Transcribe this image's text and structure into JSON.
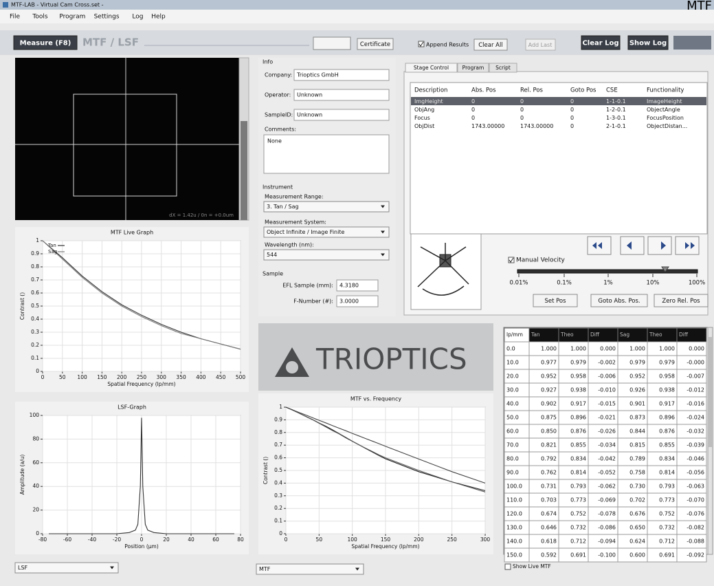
{
  "window": {
    "title": "MTF-LAB - Virtual Cam Cross.set -",
    "corner": "MTF"
  },
  "menu": [
    "File",
    "Tools",
    "Program",
    "Settings",
    "Log",
    "Help"
  ],
  "toolbar": {
    "measure": "Measure (F8)",
    "mode": "MTF / LSF",
    "certificate": "Certificate",
    "append": "Append Results",
    "clear_all": "Clear All",
    "add_last": "Add Last",
    "clear_log": "Clear Log",
    "show_log": "Show Log"
  },
  "camera": {
    "status": "dX =   1.42u / 0n =   +0.0um"
  },
  "info": {
    "heading": "Info",
    "company_label": "Company:",
    "company": "Trioptics GmbH",
    "operator_label": "Operator:",
    "operator": "Unknown",
    "sample_id_label": "SampleID:",
    "sample_id": "Unknown",
    "comments_label": "Comments:",
    "comments": "None"
  },
  "instrument": {
    "heading": "Instrument",
    "range_label": "Measurement Range:",
    "range": "3. Tan / Sag",
    "system_label": "Measurement System:",
    "system": "Object Infinite / Image Finite",
    "wavelength_label": "Wavelength (nm):",
    "wavelength": "544"
  },
  "sample": {
    "heading": "Sample",
    "efl_label": "EFL Sample (mm):",
    "efl": "4.3180",
    "fnum_label": "F-Number (#):",
    "fnum": "3.0000"
  },
  "stage": {
    "tabs": [
      "Stage Control",
      "Program",
      "Script"
    ],
    "columns": [
      "Description",
      "Abs. Pos",
      "Rel. Pos",
      "Goto Pos",
      "CSE",
      "Functionality"
    ],
    "rows": [
      [
        "ImgHeight",
        "0",
        "0",
        "0",
        "1-1-0.1",
        "ImageHeight"
      ],
      [
        "ObjAng",
        "0",
        "0",
        "0",
        "1-2-0.1",
        "ObjectAngle"
      ],
      [
        "Focus",
        "0",
        "0",
        "0",
        "1-3-0.1",
        "FocusPosition"
      ],
      [
        "ObjDist",
        "1743.00000",
        "1743.00000",
        "0",
        "2-1-0.1",
        "ObjectDistan..."
      ]
    ],
    "manual_velocity": "Manual Velocity",
    "velocity_ticks": [
      "0.01%",
      "0.1%",
      "1%",
      "10%",
      "100%"
    ],
    "buttons": [
      "Set Pos",
      "Goto Abs. Pos.",
      "Zero Rel. Pos"
    ]
  },
  "logo": "TRIOPTICS",
  "charts": {
    "live": {
      "type": "line",
      "title": "MTF Live Graph",
      "x_label": "Spatial Frequency (lp/mm)",
      "y_label": "Contrast ()",
      "x": [
        0,
        50,
        100,
        150,
        200,
        250,
        300,
        350,
        400,
        450,
        500
      ],
      "series": [
        {
          "name": "Tan",
          "color": "#333333",
          "values": [
            1,
            0.87,
            0.73,
            0.61,
            0.51,
            0.43,
            0.36,
            0.3,
            0.25,
            0.21,
            0.17
          ]
        },
        {
          "name": "Sag",
          "color": "#777777",
          "values": [
            1,
            0.86,
            0.72,
            0.6,
            0.5,
            0.42,
            0.35,
            0.29,
            0.25,
            0.21,
            0.17
          ]
        }
      ],
      "xlim": [
        0,
        500
      ],
      "xticks": [
        0,
        50,
        100,
        150,
        200,
        250,
        300,
        350,
        400,
        450,
        500
      ],
      "ylim": [
        0,
        1
      ],
      "yticks": [
        0,
        0.1,
        0.2,
        0.3,
        0.4,
        0.5,
        0.6,
        0.7,
        0.8,
        0.9,
        1
      ],
      "grid": true
    },
    "lsf": {
      "type": "line",
      "title": "LSF-Graph",
      "x_label": "Position (µm)",
      "y_label": "Amplitude (a/u)",
      "x": [
        -75,
        -20,
        -10,
        -5,
        -3,
        -1,
        0,
        1,
        3,
        5,
        10,
        20,
        75
      ],
      "series": [
        {
          "color": "#333333",
          "values": [
            0,
            0,
            1,
            3,
            8,
            40,
            98,
            40,
            8,
            3,
            1,
            0,
            0
          ]
        }
      ],
      "xlim": [
        -80,
        80
      ],
      "xticks": [
        -80,
        -60,
        -40,
        -20,
        0,
        20,
        40,
        60,
        80
      ],
      "ylim": [
        0,
        100
      ],
      "yticks": [
        0,
        20,
        40,
        60,
        80,
        100
      ],
      "grid": true
    },
    "mtf": {
      "type": "line",
      "title": "MTF vs. Frequency",
      "x_label": "Spatial Frequency (lp/mm)",
      "y_label": "Contrast ()",
      "x": [
        0,
        10,
        20,
        30,
        40,
        50,
        60,
        70,
        80,
        90,
        100,
        110,
        120,
        130,
        140,
        150,
        200,
        250,
        300
      ],
      "series": [
        {
          "color": "#222222",
          "values": [
            1,
            0.977,
            0.952,
            0.927,
            0.902,
            0.875,
            0.85,
            0.821,
            0.792,
            0.762,
            0.731,
            0.703,
            0.674,
            0.646,
            0.618,
            0.592,
            0.49,
            0.41,
            0.34
          ]
        },
        {
          "color": "#555555",
          "values": [
            1,
            0.979,
            0.952,
            0.926,
            0.901,
            0.873,
            0.844,
            0.815,
            0.789,
            0.758,
            0.73,
            0.702,
            0.676,
            0.65,
            0.624,
            0.6,
            0.5,
            0.41,
            0.33
          ]
        },
        {
          "color": "#444444",
          "values": [
            1,
            0.979,
            0.958,
            0.938,
            0.917,
            0.896,
            0.876,
            0.855,
            0.834,
            0.814,
            0.793,
            0.773,
            0.752,
            0.732,
            0.712,
            0.691,
            0.59,
            0.49,
            0.4
          ]
        }
      ],
      "xlim": [
        0,
        300
      ],
      "xticks": [
        0,
        50,
        100,
        150,
        200,
        250,
        300
      ],
      "ylim": [
        0,
        1
      ],
      "yticks": [
        0,
        0.1,
        0.2,
        0.3,
        0.4,
        0.5,
        0.6,
        0.7,
        0.8,
        0.9,
        1
      ],
      "grid": true
    }
  },
  "table": {
    "columns": [
      "lp/mm",
      "Tan",
      "Theo",
      "Diff",
      "Sag",
      "Theo",
      "Diff"
    ],
    "rows": [
      [
        "0.0",
        "1.000",
        "1.000",
        "0.000",
        "1.000",
        "1.000",
        "0.000"
      ],
      [
        "10.0",
        "0.977",
        "0.979",
        "-0.002",
        "0.979",
        "0.979",
        "-0.000"
      ],
      [
        "20.0",
        "0.952",
        "0.958",
        "-0.006",
        "0.952",
        "0.958",
        "-0.007"
      ],
      [
        "30.0",
        "0.927",
        "0.938",
        "-0.010",
        "0.926",
        "0.938",
        "-0.012"
      ],
      [
        "40.0",
        "0.902",
        "0.917",
        "-0.015",
        "0.901",
        "0.917",
        "-0.016"
      ],
      [
        "50.0",
        "0.875",
        "0.896",
        "-0.021",
        "0.873",
        "0.896",
        "-0.024"
      ],
      [
        "60.0",
        "0.850",
        "0.876",
        "-0.026",
        "0.844",
        "0.876",
        "-0.032"
      ],
      [
        "70.0",
        "0.821",
        "0.855",
        "-0.034",
        "0.815",
        "0.855",
        "-0.039"
      ],
      [
        "80.0",
        "0.792",
        "0.834",
        "-0.042",
        "0.789",
        "0.834",
        "-0.046"
      ],
      [
        "90.0",
        "0.762",
        "0.814",
        "-0.052",
        "0.758",
        "0.814",
        "-0.056"
      ],
      [
        "100.0",
        "0.731",
        "0.793",
        "-0.062",
        "0.730",
        "0.793",
        "-0.063"
      ],
      [
        "110.0",
        "0.703",
        "0.773",
        "-0.069",
        "0.702",
        "0.773",
        "-0.070"
      ],
      [
        "120.0",
        "0.674",
        "0.752",
        "-0.078",
        "0.676",
        "0.752",
        "-0.076"
      ],
      [
        "130.0",
        "0.646",
        "0.732",
        "-0.086",
        "0.650",
        "0.732",
        "-0.082"
      ],
      [
        "140.0",
        "0.618",
        "0.712",
        "-0.094",
        "0.624",
        "0.712",
        "-0.088"
      ],
      [
        "150.0",
        "0.592",
        "0.691",
        "-0.100",
        "0.600",
        "0.691",
        "-0.092"
      ]
    ]
  },
  "bottom": {
    "lsf_select": "LSF",
    "mtf_select": "MTF",
    "show_live": "Show Live MTF"
  }
}
